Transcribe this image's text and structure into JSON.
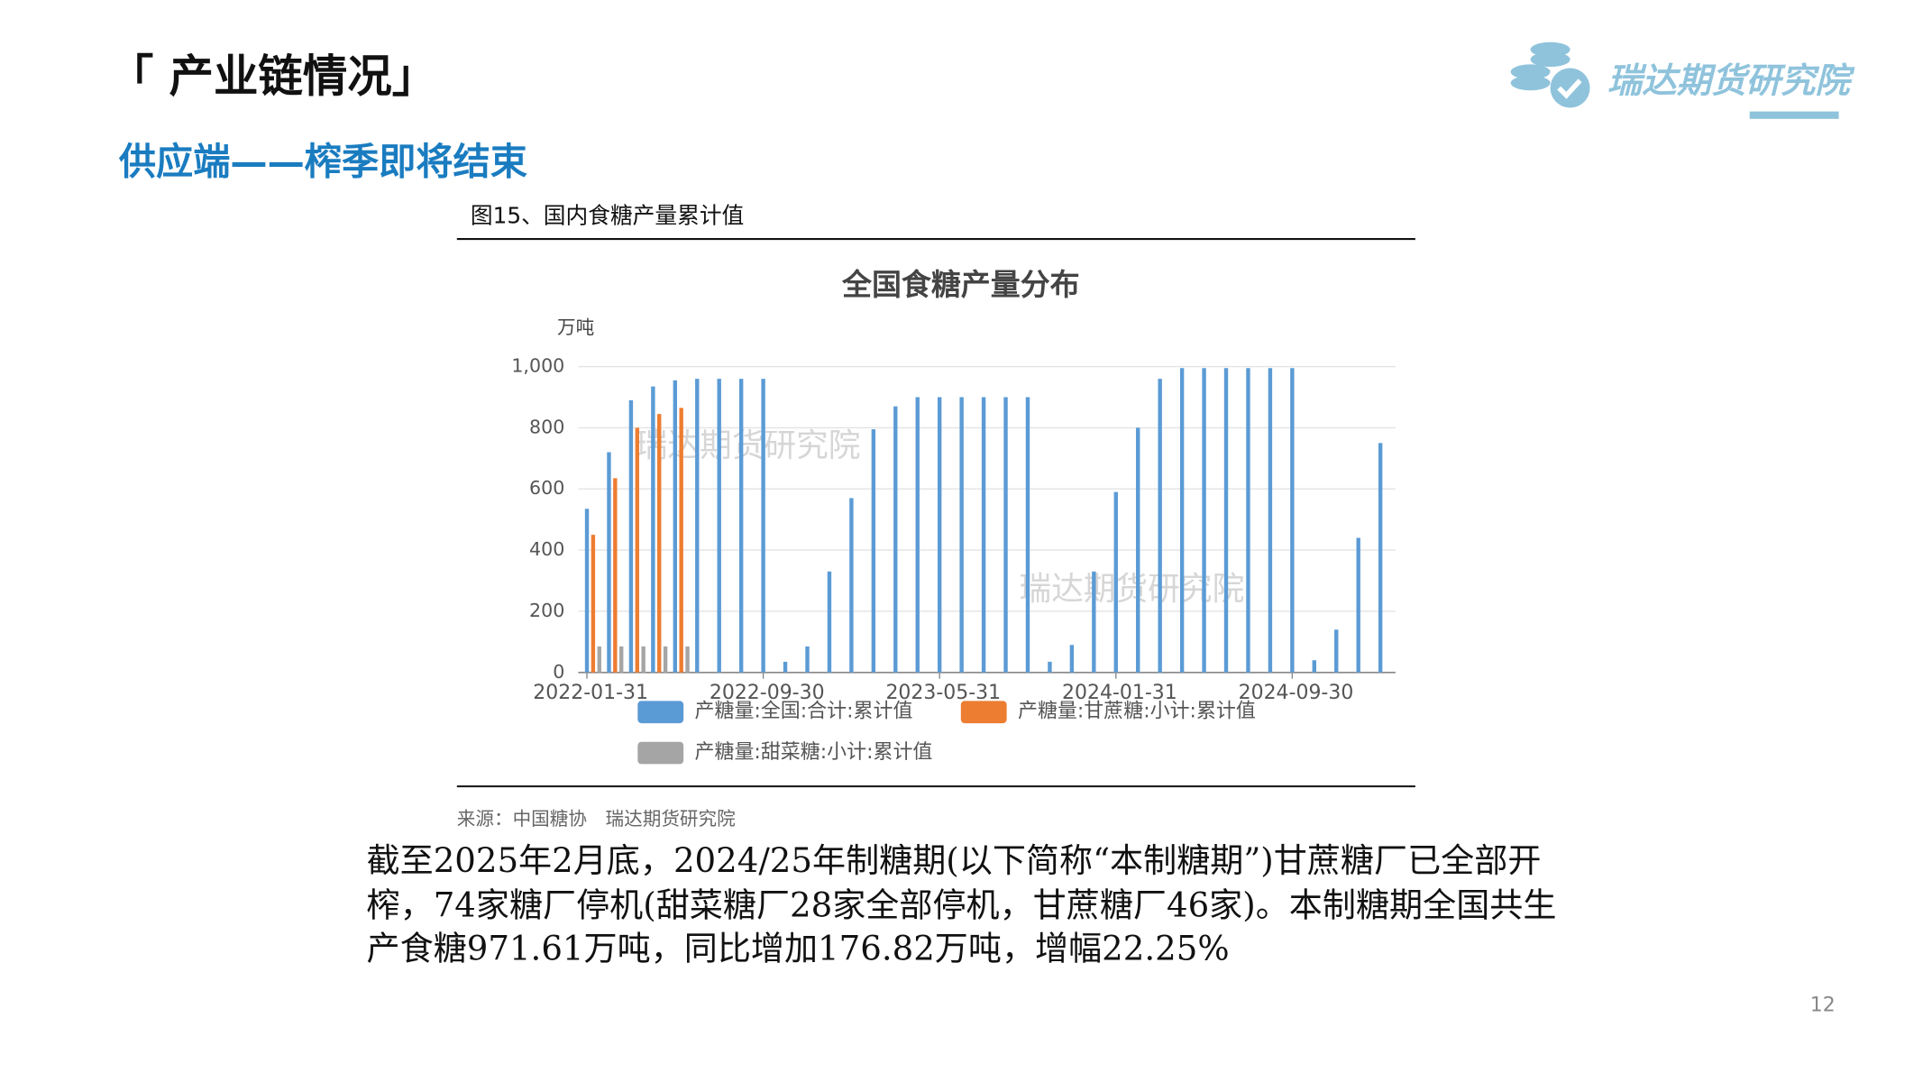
{
  "header": {
    "title": "「 产业链情况」",
    "subtitle": "供应端——榨季即将结束",
    "logo": "瑞达期货研究院"
  },
  "figure_caption": "图15、国内食糖产量累计值",
  "chart_data": {
    "type": "bar",
    "title": "全国食糖产量分布",
    "y_label": "万吨",
    "categories": [
      "2022-01-31",
      null,
      null,
      null,
      null,
      null,
      null,
      null,
      "2022-09-30",
      null,
      null,
      null,
      null,
      null,
      null,
      null,
      "2023-05-31",
      null,
      null,
      null,
      null,
      null,
      null,
      null,
      "2024-01-31",
      null,
      null,
      null,
      null,
      null,
      null,
      null,
      "2024-09-30",
      null,
      null,
      null,
      null
    ],
    "series": [
      {
        "name": "产糖量:全国:合计:累计值",
        "color": "#5b9bd5",
        "values": [
          535,
          720,
          890,
          935,
          955,
          960,
          960,
          960,
          960,
          35,
          85,
          330,
          570,
          795,
          870,
          900,
          900,
          900,
          900,
          900,
          900,
          35,
          90,
          330,
          590,
          800,
          960,
          995,
          995,
          995,
          995,
          995,
          995,
          40,
          140,
          440,
          750
        ]
      },
      {
        "name": "产糖量:甘蔗糖:小计:累计值",
        "color": "#ed7d31",
        "values": [
          450,
          635,
          800,
          845,
          865,
          null,
          null,
          null,
          null,
          null,
          null,
          null,
          null,
          null,
          null,
          null,
          null,
          null,
          null,
          null,
          null,
          null,
          null,
          null,
          null,
          null,
          null,
          null,
          null,
          null,
          null,
          null,
          null,
          null,
          null,
          null,
          null
        ]
      },
      {
        "name": "产糖量:甜菜糖:小计:累计值",
        "color": "#a5a5a5",
        "values": [
          85,
          85,
          85,
          85,
          85,
          null,
          null,
          null,
          null,
          null,
          null,
          null,
          null,
          null,
          null,
          null,
          null,
          null,
          null,
          null,
          null,
          null,
          null,
          null,
          null,
          null,
          null,
          null,
          null,
          null,
          null,
          null,
          null,
          null,
          null,
          null,
          null
        ]
      }
    ],
    "ylim": [
      0,
      1000
    ],
    "yticks": [
      0,
      200,
      400,
      600,
      800,
      {
        "value": 1000,
        "label": "1,000"
      }
    ],
    "grid": true,
    "watermarks": [
      "瑞达期货研究院",
      "瑞达期货研究院"
    ]
  },
  "source": "来源：中国糖协　瑞达期货研究院",
  "body": [
    "截至2025年2月底，2024/25年制糖期(以下简称“本制糖期”)甘蔗糖厂已全部开",
    "榨，74家糖厂停机(甜菜糖厂28家全部停机，甘蔗糖厂46家)。本制糖期全国共生",
    "产食糖971.61万吨，同比增加176.82万吨，增幅22.25%"
  ],
  "page_number": "12"
}
